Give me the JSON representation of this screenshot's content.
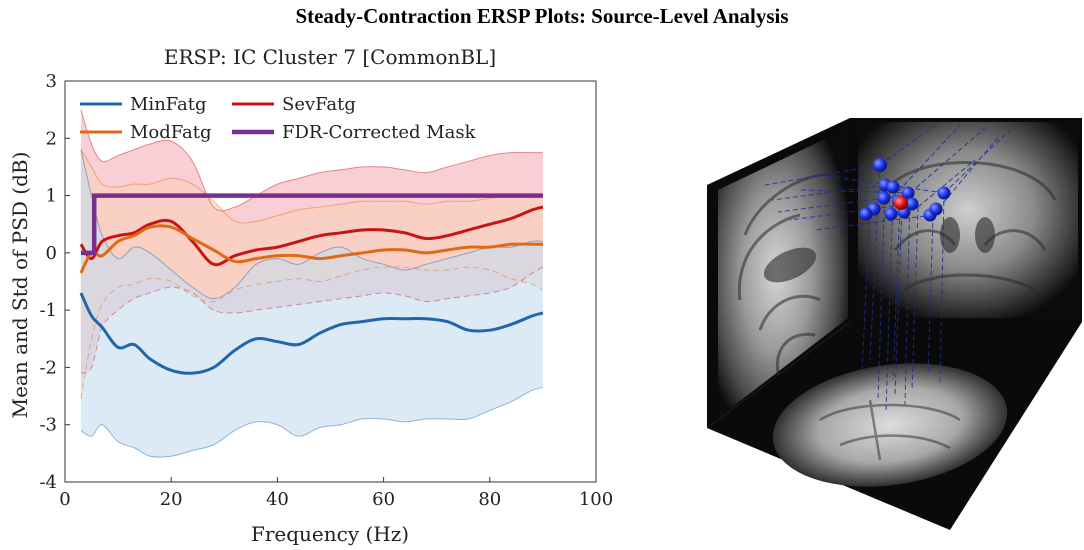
{
  "figure_title": "Steady-Contraction ERSP Plots: Source-Level Analysis",
  "colors": {
    "MinFatg": "#2166ac",
    "SevFatg": "#c81414",
    "ModFatg": "#e06a14",
    "mask": "#7b2d8e",
    "min_band": "#c5dcef",
    "sev_band": "#f4a7b4",
    "mod_band": "#fad2b4"
  },
  "chart_data": {
    "type": "line",
    "title": "ERSP: IC Cluster 7 [CommonBL]",
    "xlabel": "Frequency (Hz)",
    "ylabel": "Mean and Std of PSD (dB)",
    "xlim": [
      0,
      100
    ],
    "ylim": [
      -4,
      3
    ],
    "xticks": [
      0,
      20,
      40,
      60,
      80,
      100
    ],
    "yticks": [
      -4,
      -3,
      -2,
      -1,
      0,
      1,
      2,
      3
    ],
    "grid": false,
    "legend_position": "top-left",
    "legend": [
      "MinFatg",
      "SevFatg",
      "ModFatg",
      "FDR-Corrected Mask"
    ],
    "series": [
      {
        "name": "MinFatg",
        "x": [
          3,
          5,
          7,
          10,
          13,
          16,
          20,
          24,
          28,
          32,
          36,
          40,
          44,
          48,
          52,
          56,
          60,
          64,
          68,
          72,
          76,
          80,
          84,
          88,
          90
        ],
        "mean": [
          -0.7,
          -1.1,
          -1.3,
          -1.65,
          -1.6,
          -1.85,
          -2.05,
          -2.1,
          -2.0,
          -1.7,
          -1.5,
          -1.55,
          -1.6,
          -1.4,
          -1.25,
          -1.2,
          -1.15,
          -1.15,
          -1.15,
          -1.2,
          -1.35,
          -1.35,
          -1.25,
          -1.1,
          -1.05
        ],
        "upper": [
          1.8,
          1.0,
          0.3,
          -0.1,
          0.1,
          0.0,
          -0.3,
          -0.6,
          -0.8,
          -0.6,
          -0.2,
          -0.1,
          -0.2,
          0.0,
          0.1,
          -0.1,
          -0.2,
          -0.3,
          -0.2,
          -0.1,
          0.0,
          0.1,
          0.1,
          0.2,
          0.2
        ],
        "lower": [
          -3.1,
          -3.2,
          -3.0,
          -3.3,
          -3.4,
          -3.55,
          -3.55,
          -3.45,
          -3.35,
          -3.1,
          -2.95,
          -3.0,
          -3.2,
          -3.05,
          -3.0,
          -2.9,
          -2.9,
          -2.95,
          -2.9,
          -2.9,
          -2.9,
          -2.75,
          -2.6,
          -2.4,
          -2.35
        ]
      },
      {
        "name": "SevFatg",
        "x": [
          3,
          5,
          7,
          10,
          13,
          16,
          20,
          24,
          28,
          32,
          36,
          40,
          44,
          48,
          52,
          56,
          60,
          64,
          68,
          72,
          76,
          80,
          84,
          88,
          90
        ],
        "mean": [
          0.15,
          -0.1,
          0.2,
          0.3,
          0.35,
          0.5,
          0.55,
          0.2,
          -0.2,
          -0.05,
          0.05,
          0.1,
          0.2,
          0.3,
          0.35,
          0.4,
          0.4,
          0.35,
          0.25,
          0.3,
          0.4,
          0.5,
          0.6,
          0.75,
          0.8
        ],
        "upper": [
          2.5,
          1.9,
          1.6,
          1.7,
          1.8,
          1.9,
          1.95,
          1.6,
          0.8,
          0.8,
          1.0,
          1.2,
          1.3,
          1.4,
          1.45,
          1.5,
          1.5,
          1.45,
          1.4,
          1.5,
          1.6,
          1.7,
          1.75,
          1.75,
          1.75
        ],
        "lower": [
          -2.1,
          -2.0,
          -1.3,
          -1.0,
          -0.8,
          -0.7,
          -0.6,
          -0.7,
          -1.0,
          -1.05,
          -1.0,
          -0.95,
          -0.9,
          -0.85,
          -0.8,
          -0.75,
          -0.7,
          -0.75,
          -0.85,
          -0.8,
          -0.75,
          -0.7,
          -0.6,
          -0.35,
          -0.25
        ]
      },
      {
        "name": "ModFatg",
        "x": [
          3,
          5,
          7,
          10,
          13,
          16,
          20,
          24,
          28,
          32,
          36,
          40,
          44,
          48,
          52,
          56,
          60,
          64,
          68,
          72,
          76,
          80,
          84,
          88,
          90
        ],
        "mean": [
          -0.35,
          0.0,
          -0.05,
          0.2,
          0.3,
          0.45,
          0.45,
          0.25,
          0.05,
          -0.15,
          -0.1,
          -0.05,
          -0.05,
          -0.1,
          -0.05,
          0.0,
          0.05,
          0.05,
          0.0,
          0.05,
          0.1,
          0.1,
          0.15,
          0.15,
          0.15
        ],
        "upper": [
          1.8,
          1.5,
          1.2,
          1.15,
          1.2,
          1.2,
          1.3,
          1.2,
          0.9,
          0.55,
          0.55,
          0.65,
          0.75,
          0.8,
          0.85,
          0.9,
          0.9,
          0.9,
          0.85,
          0.9,
          0.9,
          0.95,
          1.0,
          1.0,
          1.0
        ],
        "lower": [
          -2.55,
          -1.5,
          -0.9,
          -0.6,
          -0.55,
          -0.45,
          -0.5,
          -0.75,
          -0.85,
          -0.65,
          -0.55,
          -0.5,
          -0.45,
          -0.5,
          -0.4,
          -0.3,
          -0.25,
          -0.25,
          -0.3,
          -0.3,
          -0.25,
          -0.3,
          -0.45,
          -0.55,
          -0.65
        ]
      },
      {
        "name": "FDR-Corrected Mask",
        "x": [
          3,
          5.5,
          5.5,
          90
        ],
        "values": [
          0,
          0,
          1,
          1
        ]
      }
    ]
  },
  "brain_panel": {
    "description_label": "3D dipole source localization on MRI slices",
    "dipole_count_blue": 14,
    "centroid_color": "#e01010",
    "dipole_color": "#1830e8"
  }
}
